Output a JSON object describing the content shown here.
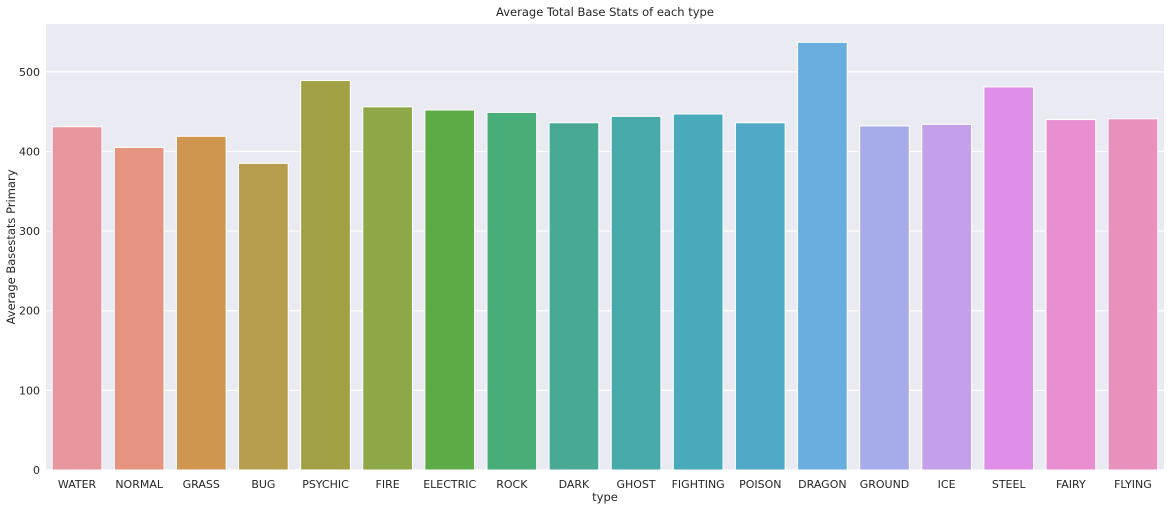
{
  "chart_data": {
    "type": "bar",
    "title": "Average Total Base Stats of each type",
    "xlabel": "type",
    "ylabel": "Average Basestats Primary",
    "ylim": [
      0,
      560
    ],
    "yticks": [
      0,
      100,
      200,
      300,
      400,
      500
    ],
    "grid": true,
    "background": "#eaeaf2",
    "categories": [
      "WATER",
      "NORMAL",
      "GRASS",
      "BUG",
      "PSYCHIC",
      "FIRE",
      "ELECTRIC",
      "ROCK",
      "DARK",
      "GHOST",
      "FIGHTING",
      "POISON",
      "DRAGON",
      "GROUND",
      "ICE",
      "STEEL",
      "FAIRY",
      "FLYING"
    ],
    "values": [
      431,
      405,
      419,
      385,
      489,
      456,
      452,
      449,
      436,
      444,
      447,
      436,
      537,
      432,
      434,
      481,
      440,
      441
    ],
    "colors": [
      "#e8969e",
      "#e69480",
      "#cf9650",
      "#b69c4d",
      "#a2a044",
      "#8ea747",
      "#5dab47",
      "#49ad79",
      "#48aa94",
      "#48aaa8",
      "#49aabb",
      "#4fa9c7",
      "#6aaee0",
      "#a6abea",
      "#c4a0ea",
      "#df8fe7",
      "#e88ed1",
      "#e991bc"
    ]
  }
}
